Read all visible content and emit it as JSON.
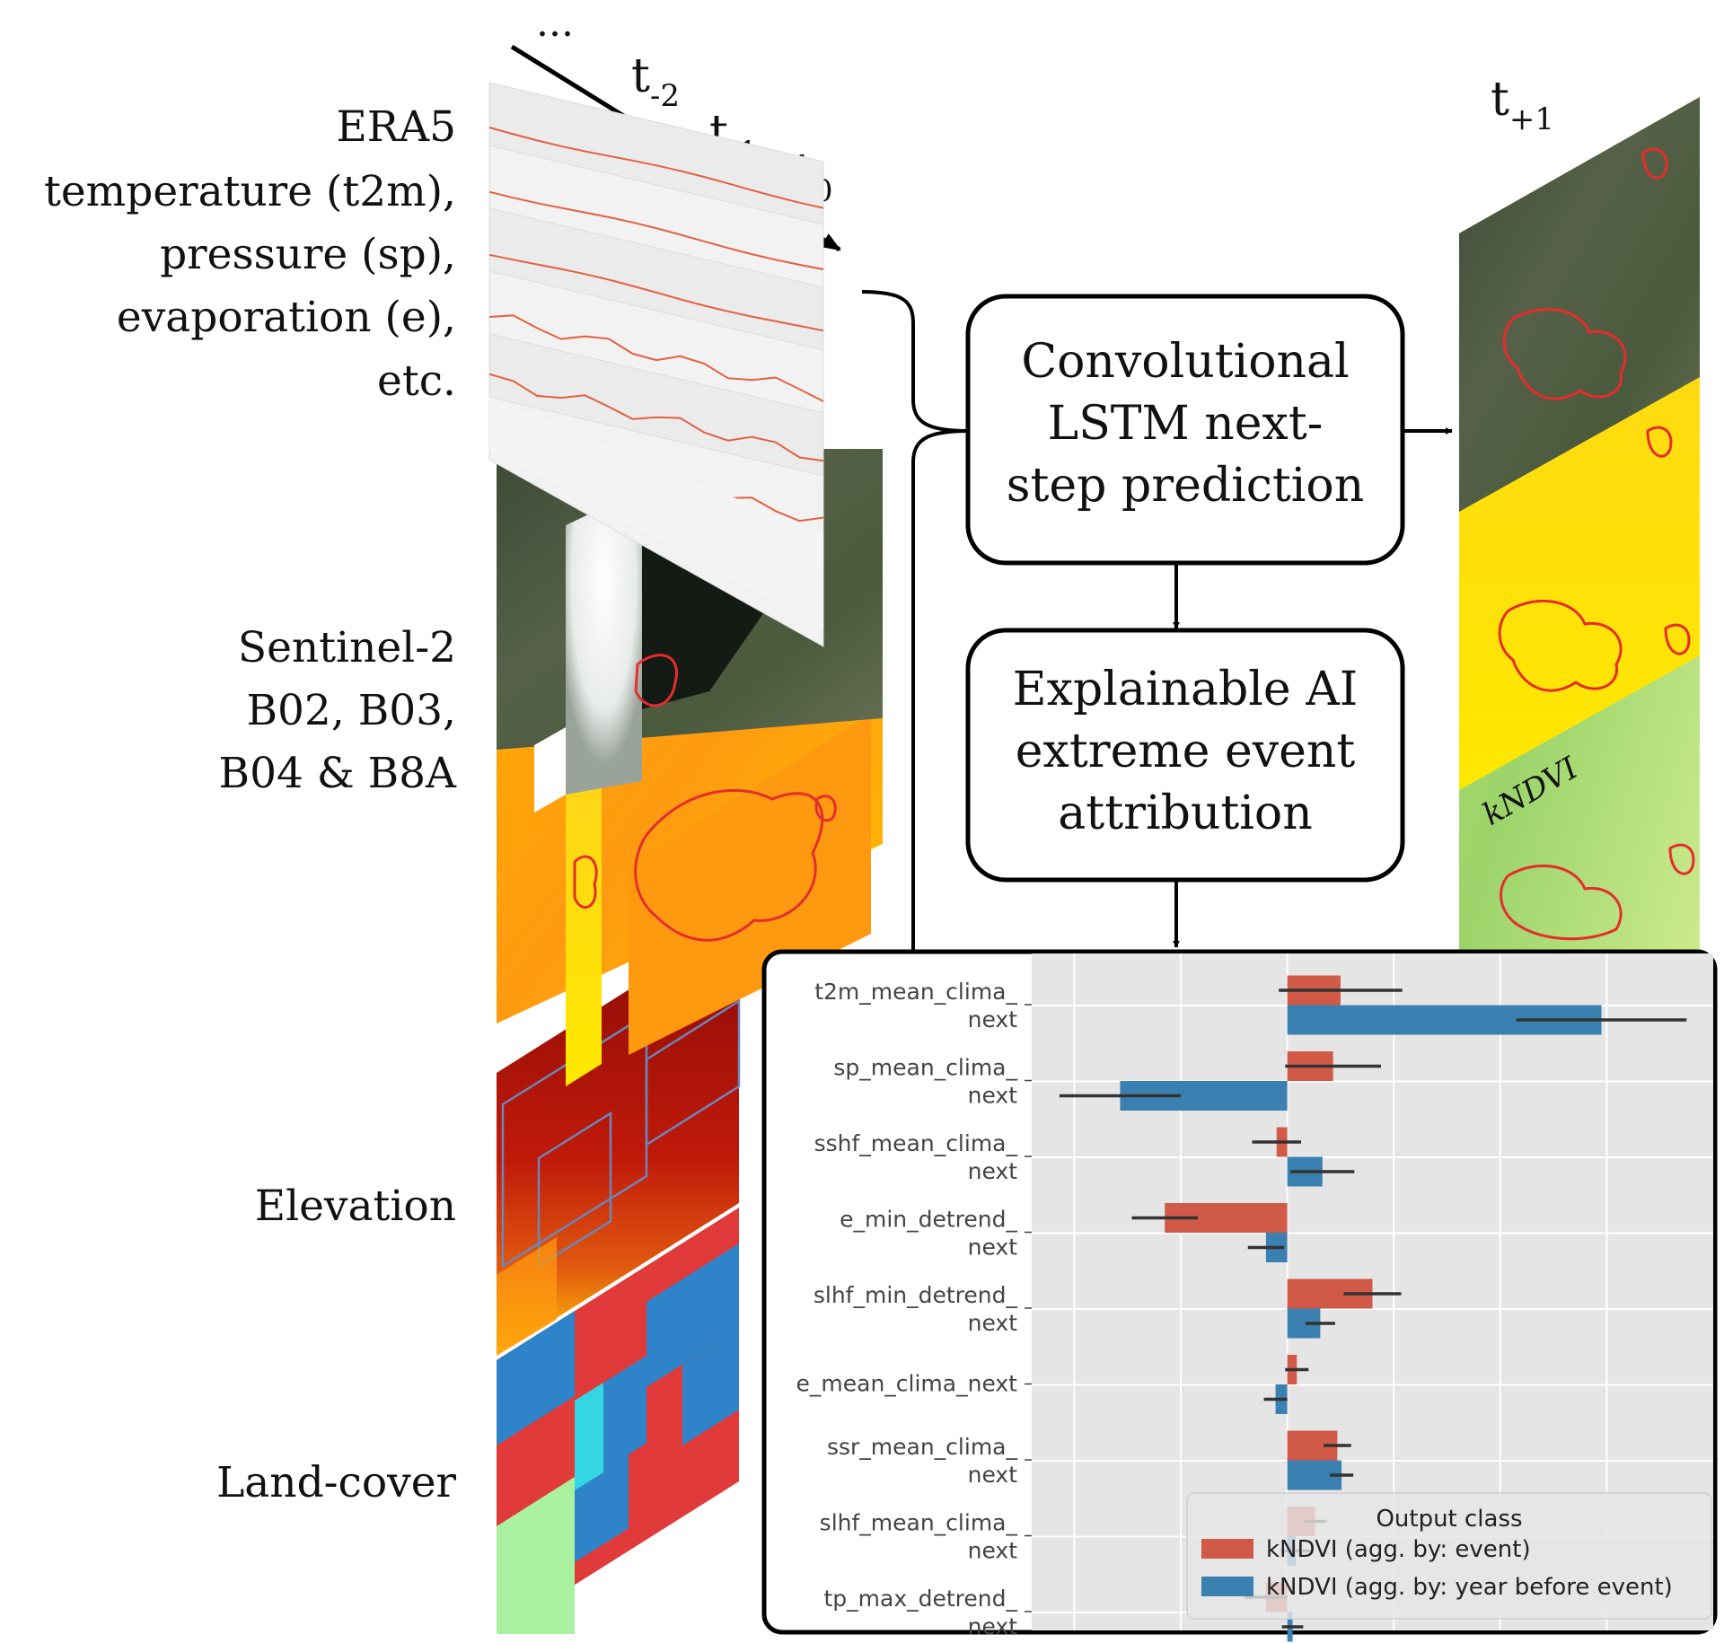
{
  "time_axis": {
    "ellipsis": "...",
    "steps": [
      {
        "base": "t",
        "sub": "-2"
      },
      {
        "base": "t",
        "sub": "-1"
      },
      {
        "base": "t",
        "sub": "0"
      }
    ],
    "output_step": {
      "base": "t",
      "sub": "+1"
    }
  },
  "inputs": {
    "era5": [
      "ERA5",
      "temperature (t2m),",
      "pressure (sp),",
      "evaporation (e),",
      "etc."
    ],
    "sentinel": [
      "Sentinel-2",
      "B02, B03,",
      "B04 & B8A"
    ],
    "elevation": [
      "Elevation"
    ],
    "landcover": [
      "Land-cover"
    ]
  },
  "boxes": {
    "model": [
      "Convolutional",
      "LSTM next-",
      "step prediction"
    ],
    "xai": [
      "Explainable AI",
      "extreme event",
      "attribution"
    ]
  },
  "output_layer_label": "kNDVI",
  "colors": {
    "event": "#d05a47",
    "year_before": "#3a80b0",
    "plot_bg": "#e5e5e5",
    "contour": "#e52d2d",
    "line": "#e36040"
  },
  "chart_data": {
    "type": "bar",
    "orientation": "horizontal",
    "grid": true,
    "categories": [
      [
        "t2m_mean_clima_",
        "next"
      ],
      [
        "sp_mean_clima_",
        "next"
      ],
      [
        "sshf_mean_clima_",
        "next"
      ],
      [
        "e_min_detrend_",
        "next"
      ],
      [
        "slhf_min_detrend_",
        "next"
      ],
      [
        "e_mean_clima_next"
      ],
      [
        "ssr_mean_clima_",
        "next"
      ],
      [
        "slhf_mean_clima_",
        "next"
      ],
      [
        "tp_max_detrend_",
        "next"
      ]
    ],
    "xlim": [
      -0.24,
      0.4
    ],
    "series": [
      {
        "name": "kNDVI (agg. by: event)",
        "values": [
          0.05,
          0.043,
          -0.01,
          -0.115,
          0.08,
          0.009,
          0.047,
          0.026,
          -0.02
        ],
        "errors": [
          0.058,
          0.045,
          0.023,
          0.031,
          0.027,
          0.011,
          0.013,
          0.011,
          0.02
        ]
      },
      {
        "name": "kNDVI (agg. by: year before event)",
        "values": [
          0.295,
          -0.157,
          0.033,
          -0.02,
          0.031,
          -0.011,
          0.051,
          0.008,
          0.005
        ],
        "errors": [
          0.08,
          0.057,
          0.03,
          0.017,
          0.014,
          0.011,
          0.011,
          0.014,
          0.01
        ]
      }
    ],
    "legend": {
      "title": "Output class",
      "position": "bottom-right"
    }
  }
}
